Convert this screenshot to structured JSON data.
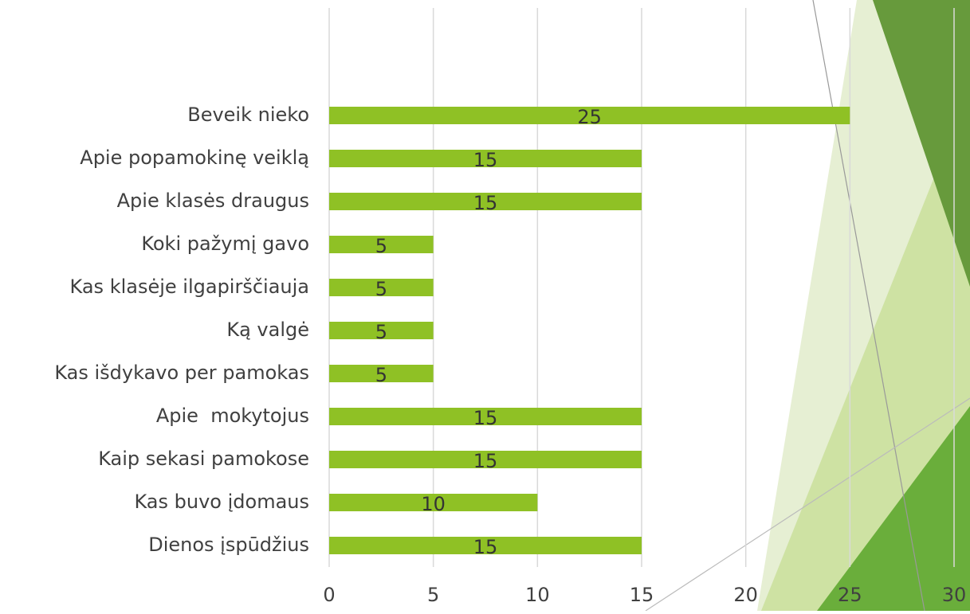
{
  "chart_data": {
    "type": "bar",
    "orientation": "horizontal",
    "categories": [
      "Beveik nieko",
      "Apie popamokinę veiklą",
      "Apie klasės draugus",
      "Koki pažymį gavo",
      "Kas klasėje ilgapirščiauja",
      "Ką valgė",
      "Kas išdykavo per pamokas",
      "Apie  mokytojus",
      "Kaip sekasi pamokose",
      "Kas buvo įdomaus",
      "Dienos įspūdžius"
    ],
    "values": [
      25,
      15,
      15,
      5,
      5,
      5,
      5,
      15,
      15,
      10,
      15
    ],
    "color": "#8fc125",
    "xlim": [
      0,
      30
    ],
    "xticks": [
      0,
      5,
      10,
      15,
      20,
      25,
      30
    ],
    "grid": true,
    "data_labels": true
  }
}
